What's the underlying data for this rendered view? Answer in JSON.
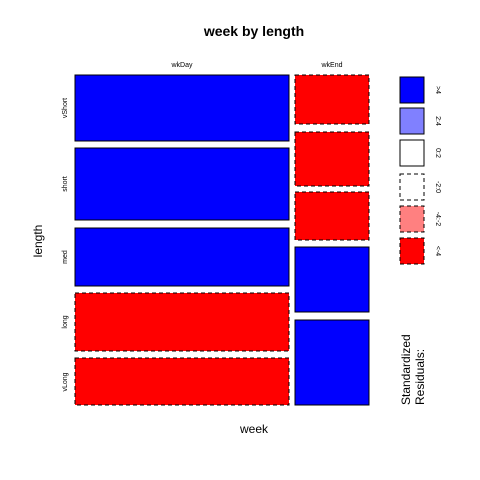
{
  "chart_data": {
    "type": "mosaic",
    "title": "week by length",
    "xlabel": "week",
    "ylabel": "length",
    "x_categories": [
      "wkDay",
      "wkEnd"
    ],
    "y_categories": [
      "vShort",
      "short",
      "med",
      "long",
      "vLong"
    ],
    "residual_bins": [
      {
        "label": ">4",
        "color": "#0000ff",
        "border": "solid"
      },
      {
        "label": "2:4",
        "color": "#8080ff",
        "border": "solid"
      },
      {
        "label": "0:2",
        "color": "#ffffff",
        "border": "solid"
      },
      {
        "label": "-2:0",
        "color": "#ffffff",
        "border": "dashed"
      },
      {
        "label": "-4:-2",
        "color": "#ff8080",
        "border": "dashed"
      },
      {
        "label": "<-4",
        "color": "#ff0000",
        "border": "dashed"
      }
    ],
    "cells": [
      {
        "week": "wkDay",
        "length": "vShort",
        "residual_bin": ">4"
      },
      {
        "week": "wkDay",
        "length": "short",
        "residual_bin": ">4"
      },
      {
        "week": "wkDay",
        "length": "med",
        "residual_bin": ">4"
      },
      {
        "week": "wkDay",
        "length": "long",
        "residual_bin": "<-4"
      },
      {
        "week": "wkDay",
        "length": "vLong",
        "residual_bin": "<-4"
      },
      {
        "week": "wkEnd",
        "length": "vShort",
        "residual_bin": "<-4"
      },
      {
        "week": "wkEnd",
        "length": "short",
        "residual_bin": "<-4"
      },
      {
        "week": "wkEnd",
        "length": "med",
        "residual_bin": "<-4"
      },
      {
        "week": "wkEnd",
        "length": "long",
        "residual_bin": ">4"
      },
      {
        "week": "wkEnd",
        "length": "vLong",
        "residual_bin": ">4"
      }
    ],
    "legend": {
      "title_line1": "Standardized",
      "title_line2": "Residuals:",
      "position": "right"
    }
  }
}
